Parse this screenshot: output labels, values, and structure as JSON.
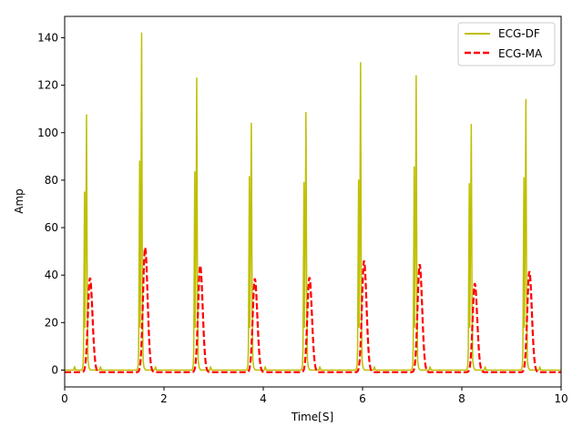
{
  "chart_data": {
    "type": "line",
    "title": "",
    "xlabel": "Time[S]",
    "ylabel": "Amp",
    "xlim": [
      0,
      10
    ],
    "ylim": [
      -7.1,
      149
    ],
    "x_ticks": [
      0,
      2,
      4,
      6,
      8,
      10
    ],
    "y_ticks": [
      0,
      20,
      40,
      60,
      80,
      100,
      120,
      140
    ],
    "grid": false,
    "legend_position": "top-right",
    "beats": [
      {
        "peak_time": 0.44,
        "df_peak": 107.5,
        "df_pre": 75,
        "ma_peak": 39.8
      },
      {
        "peak_time": 1.55,
        "df_peak": 142,
        "df_pre": 88,
        "ma_peak": 52.5
      },
      {
        "peak_time": 2.66,
        "df_peak": 123,
        "df_pre": 83.5,
        "ma_peak": 45
      },
      {
        "peak_time": 3.76,
        "df_peak": 104,
        "df_pre": 81.5,
        "ma_peak": 39.5
      },
      {
        "peak_time": 4.86,
        "df_peak": 108.5,
        "df_pre": 79,
        "ma_peak": 40
      },
      {
        "peak_time": 5.96,
        "df_peak": 129.5,
        "df_pre": 80,
        "ma_peak": 47
      },
      {
        "peak_time": 7.08,
        "df_peak": 124,
        "df_pre": 85.5,
        "ma_peak": 45.5
      },
      {
        "peak_time": 8.19,
        "df_peak": 103.5,
        "df_pre": 78.5,
        "ma_peak": 37.5
      },
      {
        "peak_time": 9.29,
        "df_peak": 114,
        "df_pre": 81,
        "ma_peak": 42.5
      }
    ],
    "series": [
      {
        "name": "ECG-DF",
        "color": "#bfbf00",
        "style": "solid"
      },
      {
        "name": "ECG-MA",
        "color": "#ff0000",
        "style": "dashed"
      }
    ]
  }
}
